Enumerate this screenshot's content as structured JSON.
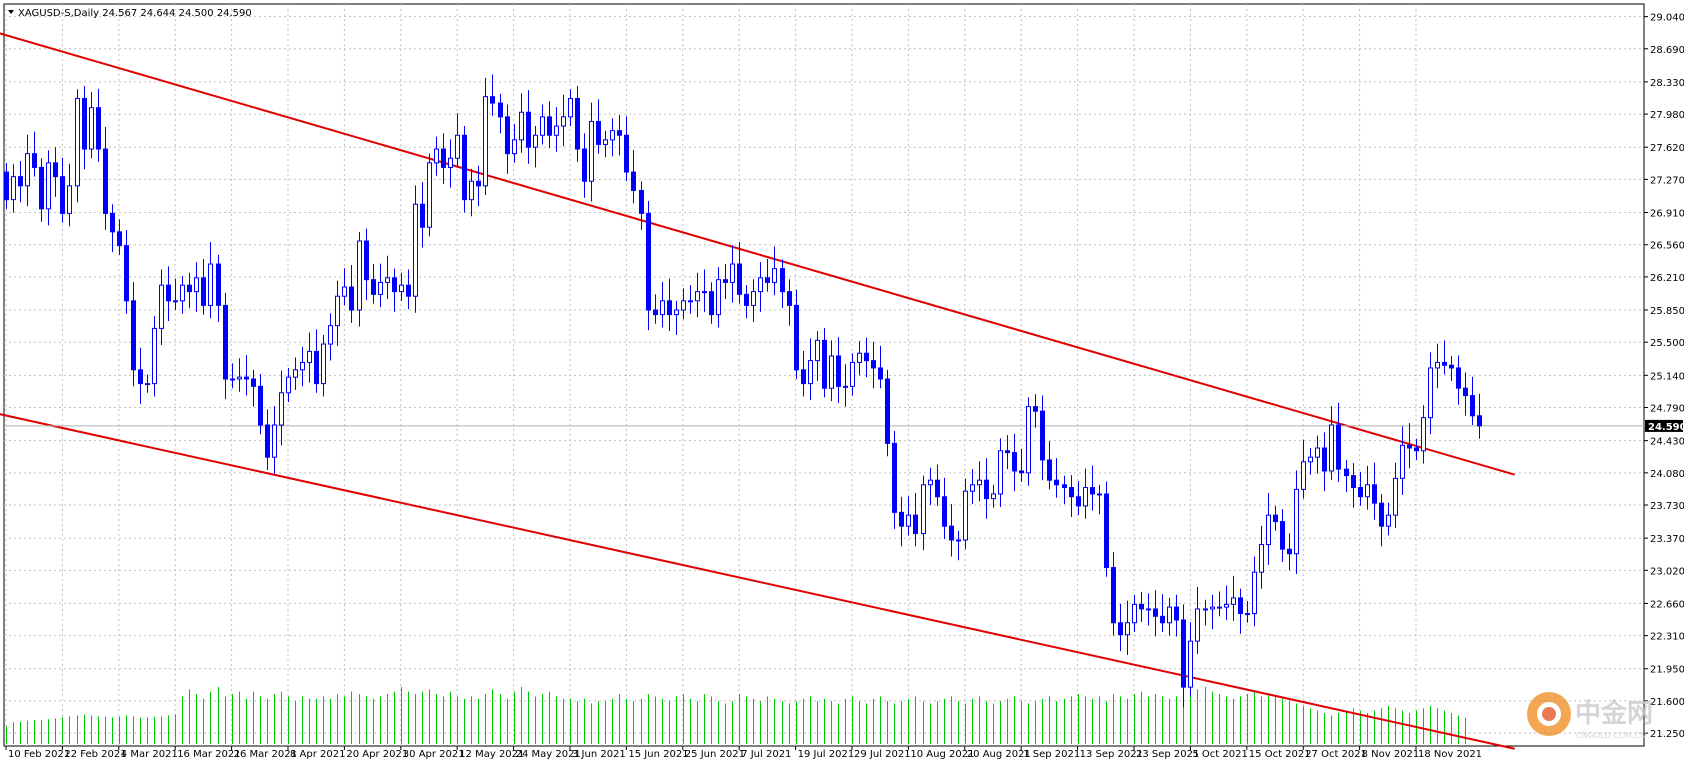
{
  "header": {
    "symbol_line": "XAGUSD-S,Daily  24.567 24.644 24.500 24.590"
  },
  "price_tag": "24.590",
  "watermark": {
    "text": "中金网",
    "subtext": "CNGOLD.COM.CN"
  },
  "colors": {
    "background": "#ffffff",
    "bull_candle_body": "#ffffff",
    "candle_outline": "#0000ff",
    "bear_candle_body": "#0000ff",
    "volume": "#00c800",
    "trendline": "#e00000",
    "grid": "#c0c0c0",
    "price_tag_bg": "#000000"
  },
  "chart_data": {
    "type": "candlestick",
    "symbol": "XAGUSD-S",
    "timeframe": "Daily",
    "last_price": 24.59,
    "y_range": [
      21.11,
      29.09
    ],
    "y_ticks": [
      "29.040",
      "28.690",
      "28.330",
      "27.980",
      "27.620",
      "27.270",
      "26.910",
      "26.560",
      "26.210",
      "25.850",
      "25.500",
      "25.140",
      "24.790",
      "24.430",
      "24.080",
      "23.730",
      "23.370",
      "23.020",
      "22.660",
      "22.310",
      "21.950",
      "21.600",
      "21.250"
    ],
    "x_labels": [
      "10 Feb 2021",
      "22 Feb 2021",
      "4 Mar 2021",
      "16 Mar 2021",
      "26 Mar 2021",
      "8 Apr 2021",
      "20 Apr 2021",
      "30 Apr 2021",
      "12 May 2021",
      "24 May 2021",
      "3 Jun 2021",
      "15 Jun 2021",
      "25 Jun 2021",
      "7 Jul 2021",
      "19 Jul 2021",
      "29 Jul 2021",
      "10 Aug 2021",
      "20 Aug 2021",
      "1 Sep 2021",
      "13 Sep 2021",
      "23 Sep 2021",
      "5 Oct 2021",
      "15 Oct 2021",
      "27 Oct 2021",
      "8 Nov 2021",
      "18 Nov 2021"
    ],
    "x_label_bar_index": [
      0,
      8,
      16,
      24,
      32,
      40,
      48,
      56,
      64,
      72,
      80,
      88,
      96,
      104,
      112,
      120,
      128,
      136,
      144,
      152,
      160,
      168,
      176,
      184,
      192,
      200
    ],
    "closes": [
      27.05,
      27.3,
      27.2,
      27.55,
      27.4,
      26.95,
      27.45,
      27.3,
      26.9,
      27.2,
      28.15,
      27.6,
      28.05,
      27.6,
      26.9,
      26.7,
      26.55,
      25.95,
      25.2,
      25.05,
      25.05,
      25.65,
      26.12,
      25.95,
      25.95,
      26.12,
      26.05,
      26.2,
      25.9,
      26.35,
      25.9,
      25.1,
      25.1,
      25.12,
      25.1,
      25.02,
      24.6,
      24.25,
      24.6,
      24.95,
      25.12,
      25.2,
      25.28,
      25.4,
      25.05,
      25.48,
      25.68,
      26.0,
      26.1,
      25.85,
      26.6,
      26.18,
      26.02,
      26.15,
      26.2,
      26.05,
      26.12,
      26.0,
      27.0,
      26.75,
      27.45,
      27.6,
      27.4,
      27.5,
      27.75,
      27.05,
      27.25,
      27.2,
      28.17,
      28.1,
      27.95,
      27.55,
      27.7,
      28.0,
      27.62,
      27.75,
      27.95,
      27.75,
      27.85,
      27.95,
      28.15,
      27.6,
      27.25,
      27.9,
      27.65,
      27.7,
      27.8,
      27.75,
      27.35,
      27.15,
      26.9,
      25.85,
      25.8,
      25.95,
      25.8,
      25.85,
      25.95,
      25.95,
      26.05,
      26.05,
      25.8,
      26.18,
      26.15,
      26.35,
      26.02,
      25.9,
      26.05,
      26.2,
      26.15,
      26.3,
      26.05,
      25.9,
      25.2,
      25.05,
      25.3,
      25.52,
      25.0,
      25.35,
      25.02,
      25.02,
      25.28,
      25.38,
      25.3,
      25.22,
      25.1,
      24.4,
      23.65,
      23.5,
      23.62,
      23.42,
      23.95,
      24.0,
      23.82,
      23.5,
      23.35,
      23.35,
      23.88,
      23.95,
      24.0,
      23.8,
      23.85,
      24.32,
      24.3,
      24.1,
      24.08,
      24.8,
      24.75,
      24.22,
      24.0,
      23.95,
      23.92,
      23.82,
      23.72,
      23.92,
      23.85,
      23.85,
      23.05,
      22.45,
      22.32,
      22.45,
      22.65,
      22.6,
      22.6,
      22.52,
      22.45,
      22.62,
      22.48,
      21.75,
      22.25,
      22.6,
      22.6,
      22.62,
      22.62,
      22.65,
      22.72,
      22.55,
      22.55,
      23.0,
      23.3,
      23.62,
      23.55,
      23.25,
      23.2,
      23.9,
      24.2,
      24.25,
      24.35,
      24.1,
      24.6,
      24.12,
      24.05,
      23.92,
      23.82,
      23.95,
      23.75,
      23.5,
      23.62,
      24.02,
      24.38,
      24.35,
      24.32,
      24.68,
      25.22,
      25.28,
      25.25,
      25.22,
      25.0,
      24.92,
      24.7,
      24.59
    ],
    "volume_max": 2100,
    "volumes": [
      380,
      460,
      470,
      490,
      500,
      510,
      520,
      540,
      560,
      580,
      600,
      620,
      600,
      580,
      570,
      560,
      580,
      600,
      580,
      560,
      560,
      570,
      580,
      600,
      620,
      1000,
      1150,
      1050,
      950,
      1100,
      1200,
      1000,
      1050,
      1100,
      950,
      1100,
      1000,
      950,
      1050,
      1100,
      1000,
      900,
      1000,
      950,
      950,
      1000,
      950,
      1050,
      1000,
      1100,
      1050,
      1000,
      950,
      1000,
      1050,
      1100,
      1200,
      1100,
      1050,
      1100,
      1150,
      1050,
      1000,
      1100,
      1000,
      950,
      1000,
      950,
      1050,
      1150,
      1050,
      950,
      1100,
      1200,
      1100,
      1000,
      1050,
      1100,
      1000,
      950,
      950,
      900,
      950,
      850,
      900,
      900,
      950,
      1050,
      950,
      900,
      950,
      1050,
      1000,
      950,
      900,
      1000,
      1050,
      950,
      900,
      1050,
      1000,
      900,
      850,
      900,
      1050,
      1000,
      950,
      900,
      1000,
      950,
      900,
      850,
      900,
      950,
      1000,
      900,
      950,
      900,
      850,
      950,
      1000,
      900,
      850,
      950,
      1000,
      900,
      850,
      900,
      950,
      1000,
      900,
      850,
      900,
      950,
      1000,
      900,
      850,
      950,
      1000,
      900,
      850,
      900,
      950,
      1000,
      900,
      850,
      900,
      950,
      1000,
      900,
      950,
      1000,
      1050,
      1000,
      950,
      1000,
      900,
      1050,
      1000,
      950,
      1050,
      1100,
      1000,
      1050,
      1000,
      950,
      1000,
      1050,
      1100,
      1150,
      1200,
      1100,
      1050,
      1000,
      950,
      1000,
      1050,
      1100,
      1000,
      1050,
      1000,
      950,
      900,
      850,
      800,
      750,
      700,
      650,
      600,
      650,
      700,
      750,
      700,
      650,
      700,
      750,
      800,
      750,
      700,
      650,
      700,
      750,
      800,
      750,
      700,
      650,
      600,
      550
    ],
    "trendlines": [
      {
        "from_bar": -1,
        "from_price": 28.86,
        "to_bar": 214,
        "to_price": 24.06
      },
      {
        "from_bar": -1,
        "from_price": 24.72,
        "to_bar": 214,
        "to_price": 21.08
      }
    ]
  }
}
